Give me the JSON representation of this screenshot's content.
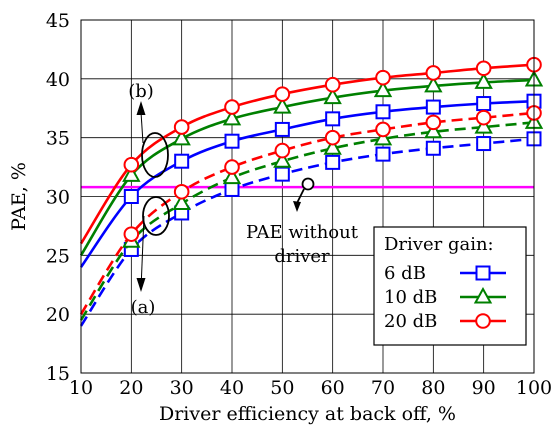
{
  "chart_data": {
    "type": "line",
    "xlabel": "Driver efficiency at back off, %",
    "ylabel": "PAE, %",
    "xlim": [
      10,
      100
    ],
    "ylim": [
      15,
      45
    ],
    "xticks": [
      10,
      20,
      30,
      40,
      50,
      60,
      70,
      80,
      90,
      100
    ],
    "yticks": [
      15,
      20,
      25,
      30,
      35,
      40,
      45
    ],
    "grid": true,
    "legend_position": "bottom-right",
    "legend_title": "Driver gain:",
    "series": [
      {
        "name": "6 dB",
        "case": "(b)",
        "color": "#0000ff",
        "marker": "square",
        "dash": false,
        "x": [
          10,
          20,
          30,
          40,
          50,
          60,
          70,
          80,
          90,
          100
        ],
        "y": [
          24.0,
          30.0,
          33.0,
          34.7,
          35.7,
          36.6,
          37.2,
          37.6,
          37.9,
          38.1
        ]
      },
      {
        "name": "10 dB",
        "case": "(b)",
        "color": "#008000",
        "marker": "triangle",
        "dash": false,
        "x": [
          10,
          20,
          30,
          40,
          50,
          60,
          70,
          80,
          90,
          100
        ],
        "y": [
          25.0,
          31.8,
          34.9,
          36.6,
          37.6,
          38.4,
          39.0,
          39.4,
          39.7,
          39.9
        ]
      },
      {
        "name": "20 dB",
        "case": "(b)",
        "color": "#ff0000",
        "marker": "circle",
        "dash": false,
        "x": [
          10,
          20,
          30,
          40,
          50,
          60,
          70,
          80,
          90,
          100
        ],
        "y": [
          26.0,
          32.7,
          35.9,
          37.6,
          38.7,
          39.5,
          40.1,
          40.5,
          40.9,
          41.2
        ]
      },
      {
        "name": "6 dB",
        "case": "(a)",
        "color": "#0000ff",
        "marker": "square",
        "dash": true,
        "x": [
          10,
          20,
          30,
          40,
          50,
          60,
          70,
          80,
          90,
          100
        ],
        "y": [
          19.0,
          25.5,
          28.6,
          30.6,
          31.9,
          32.9,
          33.6,
          34.1,
          34.5,
          34.9
        ]
      },
      {
        "name": "10 dB",
        "case": "(a)",
        "color": "#008000",
        "marker": "triangle",
        "dash": true,
        "x": [
          10,
          20,
          30,
          40,
          50,
          60,
          70,
          80,
          90,
          100
        ],
        "y": [
          19.5,
          26.2,
          29.4,
          31.6,
          33.0,
          34.1,
          34.9,
          35.5,
          35.9,
          36.3
        ]
      },
      {
        "name": "20 dB",
        "case": "(a)",
        "color": "#ff0000",
        "marker": "circle",
        "dash": true,
        "x": [
          10,
          20,
          30,
          40,
          50,
          60,
          70,
          80,
          90,
          100
        ],
        "y": [
          20.0,
          26.8,
          30.4,
          32.5,
          33.9,
          35.0,
          35.7,
          36.3,
          36.7,
          37.1
        ]
      }
    ],
    "reference_line": {
      "label_line1": "PAE without",
      "label_line2": "driver",
      "y": 30.8,
      "color": "#ff00ff"
    },
    "annotations": {
      "upper": "(b)",
      "lower": "(a)"
    }
  }
}
